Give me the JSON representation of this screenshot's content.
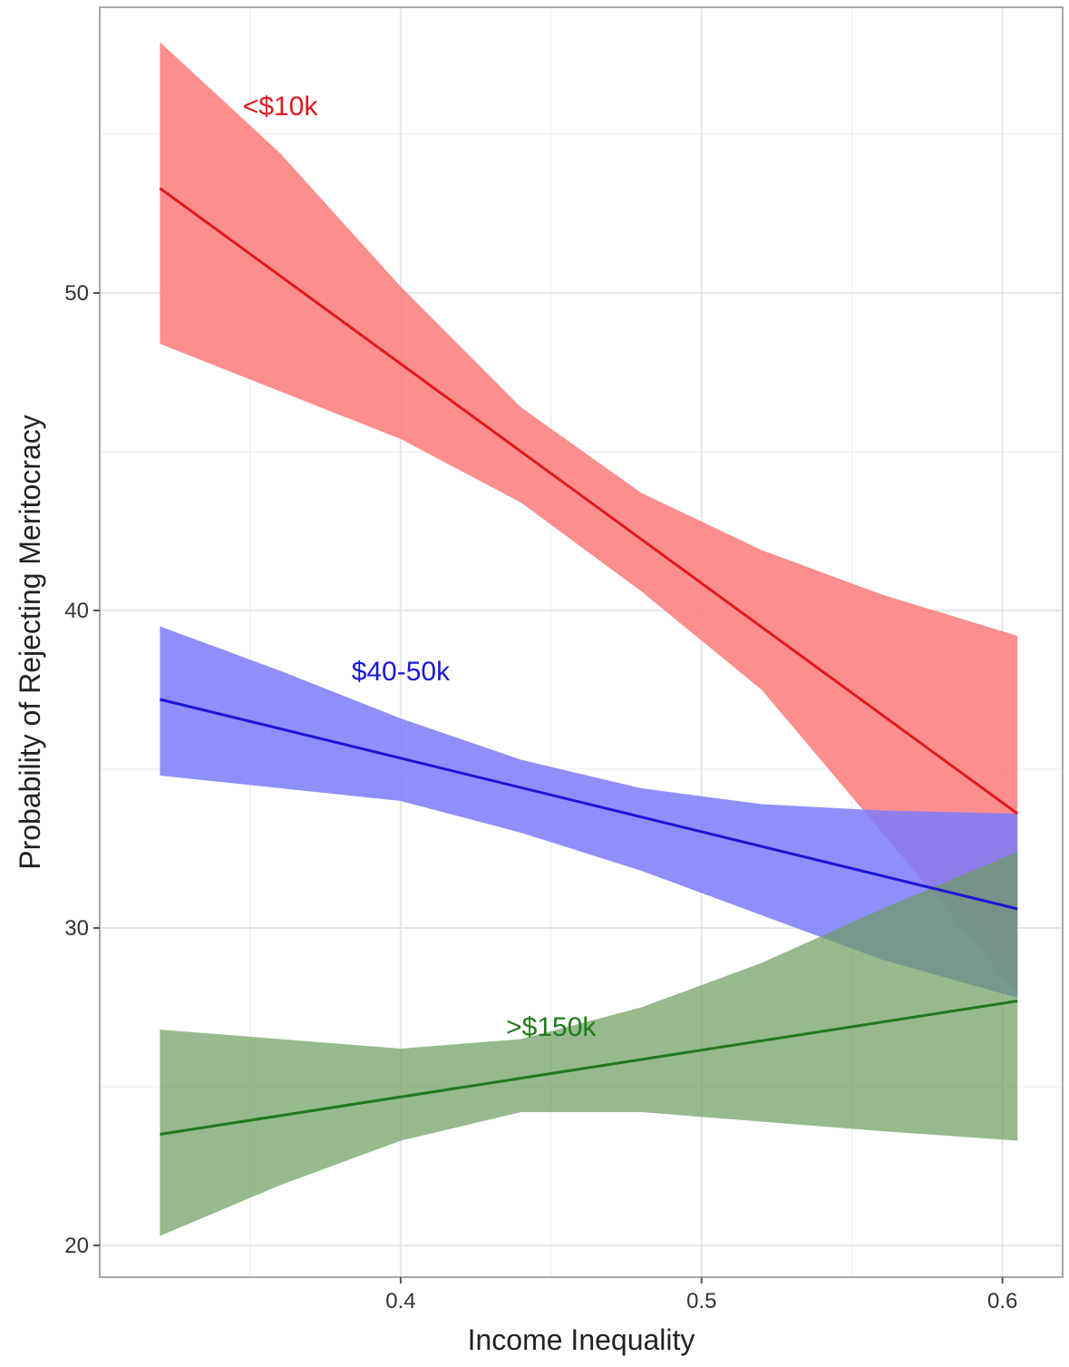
{
  "chart_data": {
    "type": "line",
    "title": "",
    "xlabel": "Income Inequality",
    "ylabel": "Probability of Rejecting Meritocracy",
    "xlim": [
      0.3,
      0.62
    ],
    "ylim": [
      19,
      59
    ],
    "x_ticks": [
      0.4,
      0.5,
      0.6
    ],
    "x_tick_labels": [
      "0.4",
      "0.5",
      "0.6"
    ],
    "y_ticks": [
      20,
      30,
      40,
      50
    ],
    "y_tick_labels": [
      "20",
      "30",
      "40",
      "50"
    ],
    "grid": true,
    "legend": "none (direct labels on series)",
    "series": [
      {
        "name": "<$10k",
        "color": "#e0191f",
        "band_color": "#fb7a7a",
        "band_opacity": 0.85,
        "label_at": [
          0.36,
          55.6
        ],
        "x": [
          0.32,
          0.605
        ],
        "y": [
          53.3,
          33.6
        ],
        "band_x": [
          0.32,
          0.36,
          0.4,
          0.44,
          0.48,
          0.52,
          0.56,
          0.605
        ],
        "band_upper": [
          57.9,
          54.4,
          50.2,
          46.4,
          43.7,
          41.9,
          40.5,
          39.2
        ],
        "band_lower": [
          48.4,
          46.9,
          45.4,
          43.4,
          40.6,
          37.5,
          33.0,
          27.9
        ]
      },
      {
        "name": "$40-50k",
        "color": "#1b17d6",
        "band_color": "#7b7bfa",
        "band_opacity": 0.85,
        "label_at": [
          0.4,
          37.8
        ],
        "x": [
          0.32,
          0.605
        ],
        "y": [
          37.2,
          30.6
        ],
        "band_x": [
          0.32,
          0.36,
          0.4,
          0.44,
          0.48,
          0.52,
          0.56,
          0.605
        ],
        "band_upper": [
          39.5,
          38.1,
          36.6,
          35.3,
          34.4,
          33.9,
          33.7,
          33.6
        ],
        "band_lower": [
          34.8,
          34.4,
          34.0,
          33.0,
          31.8,
          30.4,
          29.0,
          27.8
        ]
      },
      {
        "name": ">$150k",
        "color": "#1f7a1a",
        "band_color": "#6a9c5e",
        "band_opacity": 0.7,
        "label_at": [
          0.45,
          26.6
        ],
        "x": [
          0.32,
          0.605
        ],
        "y": [
          23.5,
          27.7
        ],
        "band_x": [
          0.32,
          0.36,
          0.4,
          0.44,
          0.48,
          0.52,
          0.56,
          0.605
        ],
        "band_upper": [
          26.8,
          26.5,
          26.2,
          26.5,
          27.5,
          28.9,
          30.6,
          32.4
        ],
        "band_lower": [
          20.3,
          21.9,
          23.3,
          24.2,
          24.2,
          23.9,
          23.6,
          23.3
        ]
      }
    ]
  }
}
